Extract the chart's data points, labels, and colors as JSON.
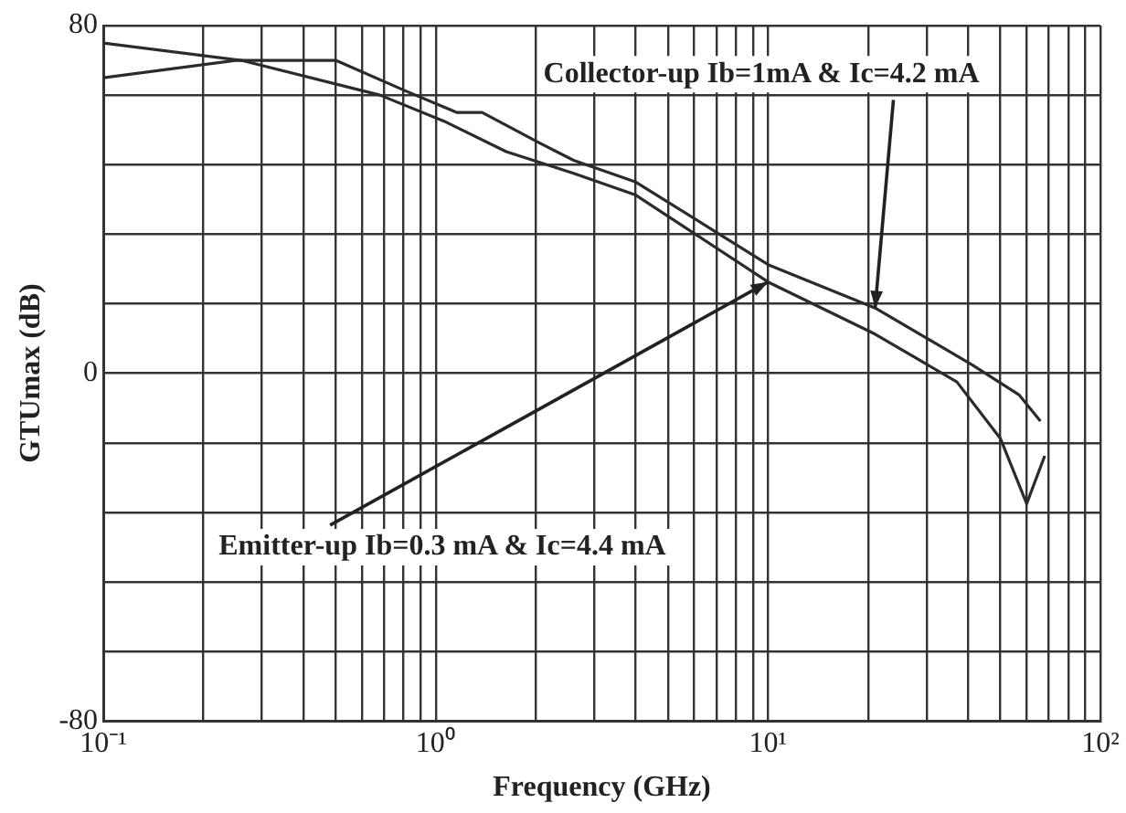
{
  "chart_data": {
    "type": "line",
    "xlabel": "Frequency (GHz)",
    "ylabel": "GTUmax (dB)",
    "log": "x",
    "grid": true,
    "legend": false,
    "marker": "none",
    "line_style": "solid",
    "xlim": [
      0.1,
      100
    ],
    "ylim": [
      -80,
      80
    ],
    "xticks": [
      {
        "value": 0.1,
        "label": "10⁻¹"
      },
      {
        "value": 0.2,
        "label": null
      },
      {
        "value": 0.3,
        "label": null
      },
      {
        "value": 0.4,
        "label": null
      },
      {
        "value": 0.5,
        "label": null
      },
      {
        "value": 0.6,
        "label": null
      },
      {
        "value": 0.7,
        "label": null
      },
      {
        "value": 0.8,
        "label": null
      },
      {
        "value": 0.9,
        "label": null
      },
      {
        "value": 1,
        "label": "10⁰"
      },
      {
        "value": 2,
        "label": null
      },
      {
        "value": 3,
        "label": null
      },
      {
        "value": 4,
        "label": null
      },
      {
        "value": 5,
        "label": null
      },
      {
        "value": 6,
        "label": null
      },
      {
        "value": 7,
        "label": null
      },
      {
        "value": 8,
        "label": null
      },
      {
        "value": 9,
        "label": null
      },
      {
        "value": 10,
        "label": "10¹"
      },
      {
        "value": 20,
        "label": null
      },
      {
        "value": 30,
        "label": null
      },
      {
        "value": 40,
        "label": null
      },
      {
        "value": 50,
        "label": null
      },
      {
        "value": 60,
        "label": null
      },
      {
        "value": 70,
        "label": null
      },
      {
        "value": 80,
        "label": null
      },
      {
        "value": 90,
        "label": null
      },
      {
        "value": 100,
        "label": "10²"
      }
    ],
    "yticks": [
      -80,
      {
        "value": -64,
        "label": null
      },
      {
        "value": -48,
        "label": null
      },
      {
        "value": -32,
        "label": null
      },
      {
        "value": -16,
        "label": null
      },
      0,
      {
        "value": 16,
        "label": null
      },
      {
        "value": 32,
        "label": null
      },
      {
        "value": 48,
        "label": null
      },
      {
        "value": 64,
        "label": null
      },
      80
    ],
    "series": [
      {
        "color": "#2b2b2b",
        "x": [
          0.1,
          0.26,
          0.68,
          1.06,
          1.63,
          2.6,
          4,
          10,
          21,
          37,
          50,
          60,
          68
        ],
        "values": [
          76,
          72,
          64,
          58,
          51,
          46,
          41,
          21,
          9,
          -2,
          -15,
          -30,
          -19
        ]
      },
      {
        "color": "#2b2b2b",
        "x": [
          0.1,
          0.25,
          0.5,
          0.81,
          1.16,
          1.38,
          2.05,
          2.6,
          4,
          10,
          21,
          41,
          57,
          66
        ],
        "values": [
          68,
          72,
          72,
          65,
          60,
          60,
          53,
          49,
          44,
          25,
          15,
          2,
          -5,
          -11
        ]
      }
    ],
    "annotations": [
      {
        "text": "Collector-up Ib=1mA & Ic=4.2 mA",
        "x": 21,
        "y": 15
      },
      {
        "text": "Emitter-up Ib=0.3 mA & Ic=4.4 mA",
        "x": 10,
        "y": 21
      }
    ]
  }
}
